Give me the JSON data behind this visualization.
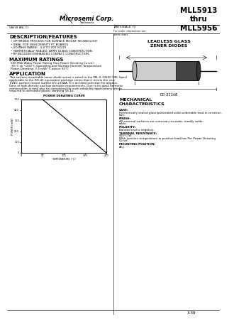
{
  "title_right": "MLL5913\nthru\nMLL5956",
  "company": "Microsemi Corp.",
  "part_left": "5AV28 ANL C1",
  "part_right_top": "JANTX5DA16; F2",
  "part_right_sub": "For order information see\nparts notes",
  "section_label": "LEADLESS GLASS\nZENER DIODES",
  "desc_title": "DESCRIPTION/FEATURES",
  "desc_bullets": [
    "OPTIMIZED PROCESS FOR SURFACE MOUNT TECHNOLOGY",
    "IDEAL FOR HIGH DENSITY PC BOARDS",
    "VOLTAGE RANGE - 2.4 TO 200 VOLTS",
    "HERMETICALLY SEALED, ARMY GLASS CONSTRUCTION",
    "RF INCLUDED ENHANCED CONTACT CONSTRUCTION"
  ],
  "max_title": "MAXIMUM RATINGS",
  "max_lines": [
    "500 Milli Watts Power Rating (See Power Derating Curve)",
    "-65°C to +200°C Operating and Storage Junction Temperature",
    "Power Derating: 3.3 mW/°C above 50°C"
  ],
  "app_title": "APPLICATION",
  "app_lines": [
    "This surface mountable zener diode series is rated to the MIL-S-19500 (MIL Spec)",
    "applicable to the DO-41 equivalent package series that it meets the new",
    "JEDEC surface mount outline DO-213AA. It is an ideal selection for applica-",
    "tions of high density and low parasitic requirements. Due to its glass hermetic",
    "construction, it may also be considered for such reliability applications where",
    "required to withstand plastic derating 58-1b."
  ],
  "mech_title": "MECHANICAL\nCHARACTERISTICS",
  "mech_items": [
    [
      "CASE:",
      "Hermetically sealed glass passivated solid solderable lead-in construc-",
      "tion."
    ],
    [
      "FINISH:",
      "All external surfaces are corrosion resistant, readily solde-",
      "rable."
    ],
    [
      "POLARITY:",
      "Banded end is nega-",
      "tive."
    ],
    [
      "THERMAL RESISTANCE:",
      "500°C/W",
      "With junction temperature in positive lead has Per Power Derating",
      "Curve."
    ],
    [
      "MOUNTING POSITION:",
      "Any."
    ]
  ],
  "page_num": "3-38",
  "diagram_label": "DO-213AB",
  "graph_title": "POWER DERATING CURVE",
  "graph_xlabel": "TEMPERATURE (°C)",
  "graph_ylabel": "POWER (mW)",
  "graph_yticks": [
    "0",
    "100",
    "200",
    "300",
    "400",
    "500"
  ],
  "graph_xticks": [
    "0",
    "50",
    "100",
    "150",
    "200"
  ],
  "bg_color": "#ffffff"
}
